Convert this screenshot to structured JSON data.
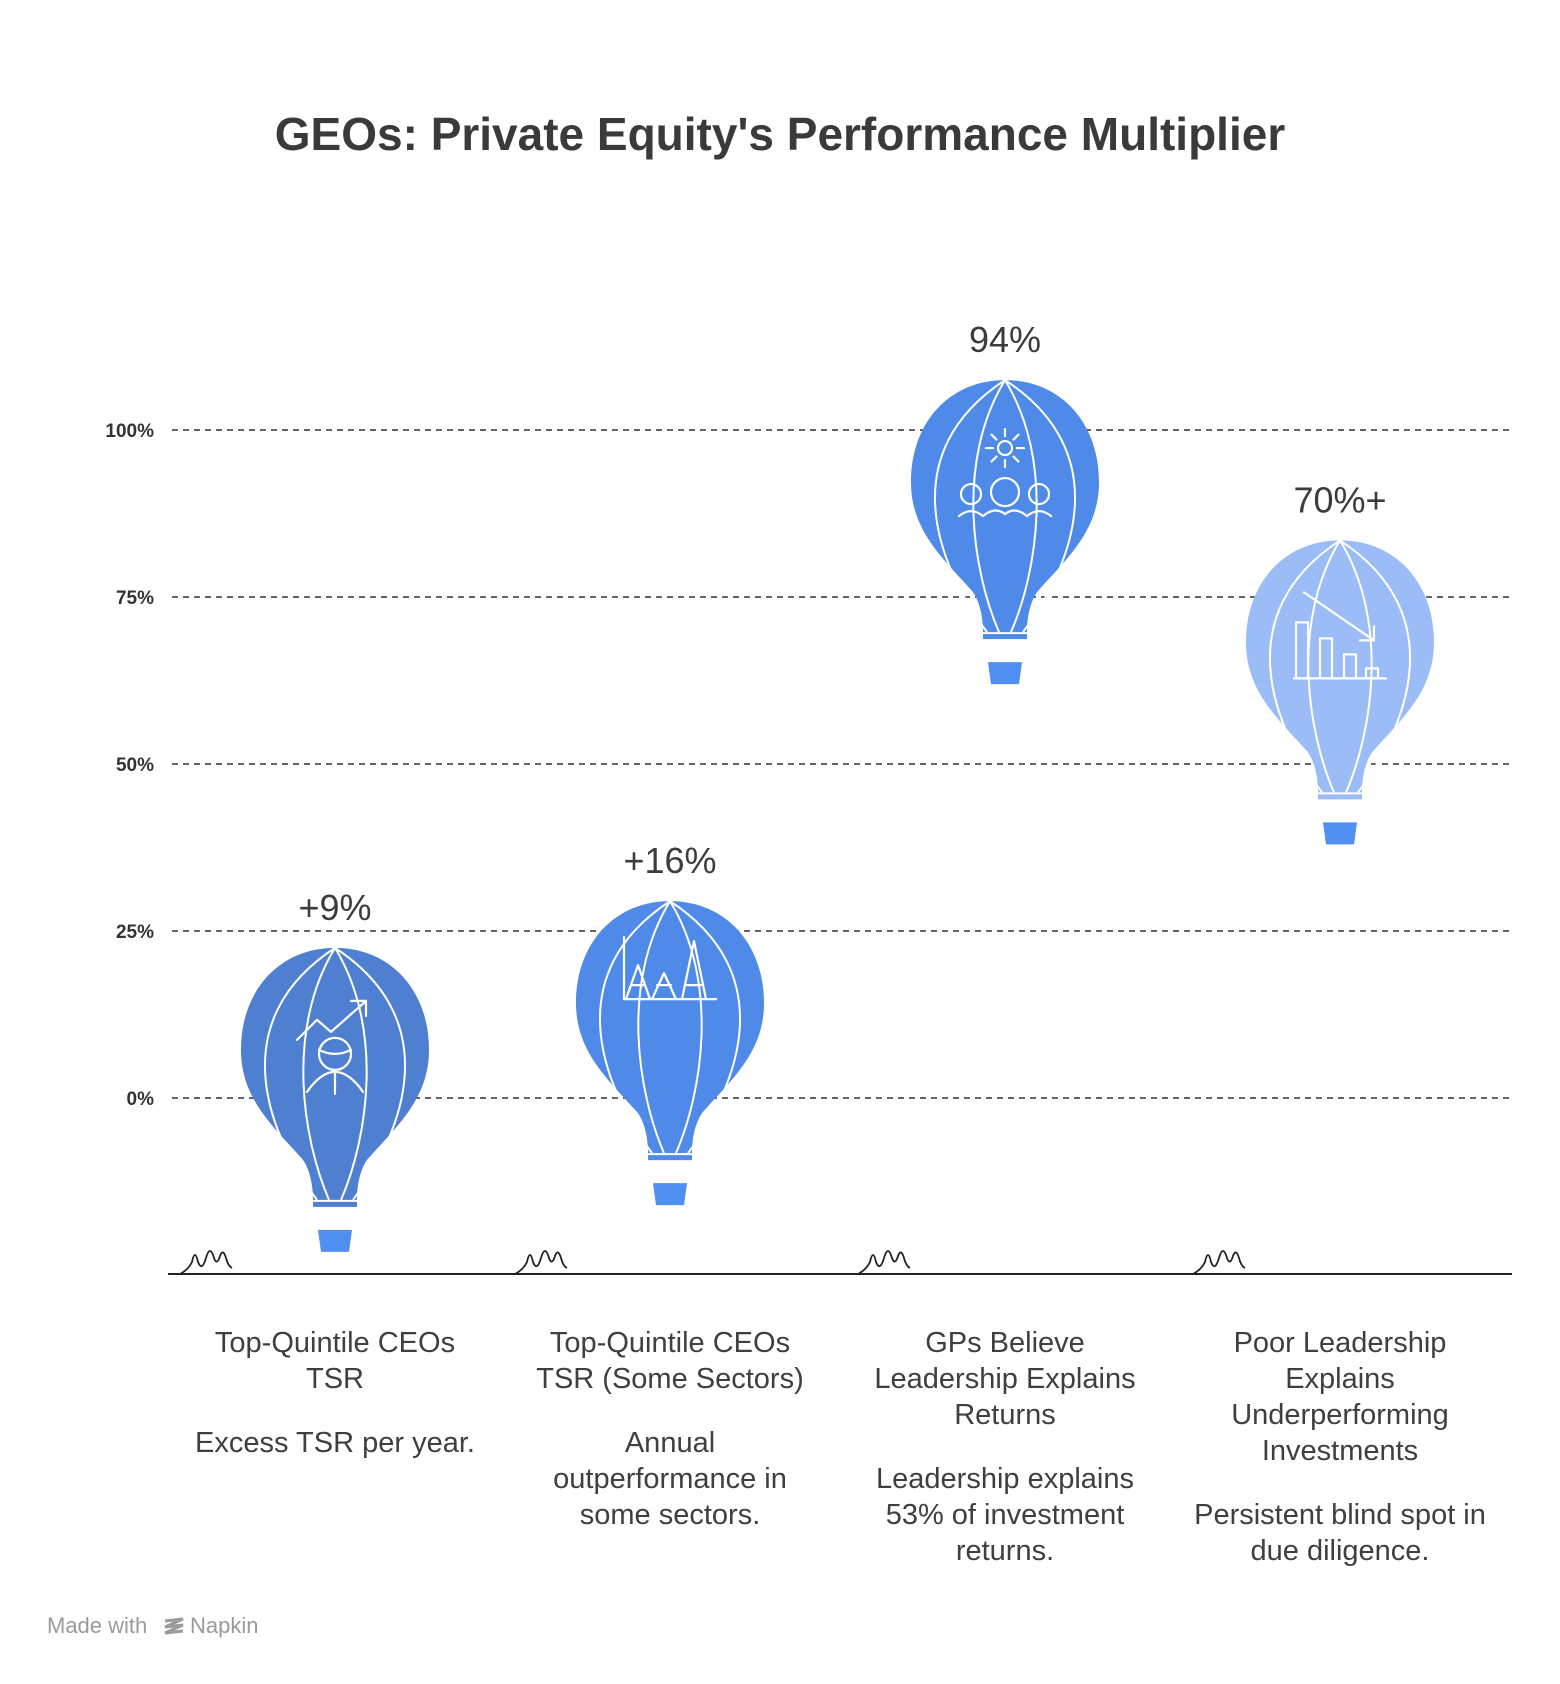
{
  "chart_data": {
    "type": "bar",
    "title": "GEOs: Private Equity's Performance Multiplier",
    "ylim": [
      0,
      100
    ],
    "yticks": [
      0,
      25,
      50,
      75,
      100
    ],
    "ytick_labels": [
      "0%",
      "25%",
      "50%",
      "75%",
      "100%"
    ],
    "grid": true,
    "categories": [
      "Top-Quintile CEOs TSR",
      "Top-Quintile CEOs TSR (Some Sectors)",
      "GPs Believe Leadership Explains Returns",
      "Poor Leadership Explains Underperforming Investments"
    ],
    "values": [
      9,
      16,
      94,
      70
    ],
    "data_labels": [
      "+9%",
      "+16%",
      "94%",
      "70%+"
    ],
    "descriptions": [
      "Excess TSR per year.",
      "Annual outperformance in some sectors.",
      "Leadership explains 53% of investment returns.",
      "Persistent blind spot in due diligence."
    ],
    "icons": [
      "growth-person-icon",
      "peaks-chart-icon",
      "gear-team-icon",
      "declining-bars-icon"
    ],
    "colors": [
      "#4e7fd0",
      "#4f8ae8",
      "#4f8ae8",
      "#9bbcf7"
    ],
    "basket_color": "#4f8ff2"
  },
  "footer": {
    "made_with": "Made with",
    "brand": "Napkin"
  }
}
